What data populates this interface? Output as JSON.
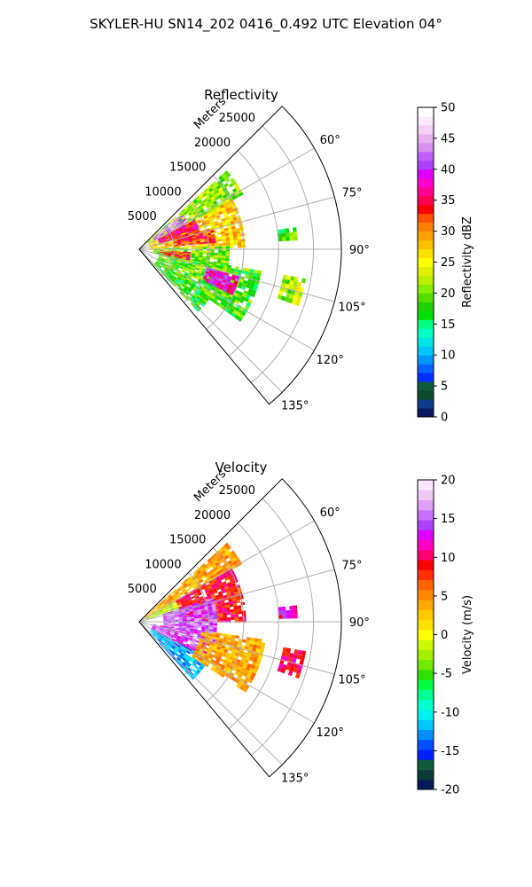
{
  "figure": {
    "suptitle": "SKYLER-HU  SN14_202  0416_0.492 UTC Elevation 04°"
  },
  "chart_data": [
    {
      "type": "heatmap",
      "title": "Reflectivity",
      "radial_axis_label": "Meters",
      "radial_ticks": [
        "5000",
        "10000",
        "15000",
        "20000",
        "25000"
      ],
      "radial_tick_values": [
        5000,
        10000,
        15000,
        20000,
        25000
      ],
      "r_max": 29000,
      "angular_range_deg": [
        45,
        140
      ],
      "angular_ticks": [
        "60°",
        "75°",
        "90°",
        "105°",
        "120°",
        "135°"
      ],
      "angular_tick_values": [
        60,
        75,
        90,
        105,
        120,
        135
      ],
      "grid": true,
      "colorbar": {
        "label": "Reflectivity dBZ",
        "range": [
          0,
          50
        ],
        "ticks": [
          "0",
          "5",
          "10",
          "15",
          "20",
          "25",
          "30",
          "35",
          "40",
          "45",
          "50"
        ],
        "colors": [
          "#081a5c",
          "#0d3a8a",
          "#0b4a2a",
          "#0e5c3c",
          "#0030ff",
          "#0064ff",
          "#0096ff",
          "#00c8ff",
          "#00e6e6",
          "#00ffc0",
          "#00ff80",
          "#00e000",
          "#22d000",
          "#55dd00",
          "#88ee00",
          "#bbf000",
          "#e0f000",
          "#ffff00",
          "#ffe000",
          "#ffc000",
          "#ffa000",
          "#ff8000",
          "#ff5000",
          "#ff0000",
          "#ff0050",
          "#ff0090",
          "#ff00d0",
          "#e000ff",
          "#b040ff",
          "#c060ff",
          "#d890f0",
          "#e8b0f0",
          "#f4d0f8",
          "#fbeafc",
          "#ffffff"
        ]
      },
      "echo_regions": [
        {
          "az_start": 48,
          "az_end": 62,
          "r_start": 1500,
          "r_end": 16500,
          "dbz": 21
        },
        {
          "az_start": 62,
          "az_end": 88,
          "r_start": 1500,
          "r_end": 15000,
          "dbz": 27
        },
        {
          "az_start": 88,
          "az_end": 104,
          "r_start": 2000,
          "r_end": 13000,
          "dbz": 20
        },
        {
          "az_start": 100,
          "az_end": 124,
          "r_start": 3000,
          "r_end": 17500,
          "dbz": 19
        },
        {
          "az_start": 124,
          "az_end": 136,
          "r_start": 3000,
          "r_end": 12000,
          "dbz": 17
        },
        {
          "az_start": 50,
          "az_end": 62,
          "r_start": 2500,
          "r_end": 7500,
          "dbz": 43
        },
        {
          "az_start": 62,
          "az_end": 74,
          "r_start": 3000,
          "r_end": 9000,
          "dbz": 36
        },
        {
          "az_start": 74,
          "az_end": 84,
          "r_start": 5000,
          "r_end": 11000,
          "dbz": 33
        },
        {
          "az_start": 105,
          "az_end": 116,
          "r_start": 10000,
          "r_end": 14500,
          "dbz": 38
        },
        {
          "az_start": 93,
          "az_end": 102,
          "r_start": 3000,
          "r_end": 7000,
          "dbz": 33
        },
        {
          "az_start": 100,
          "az_end": 108,
          "r_start": 21000,
          "r_end": 24000,
          "dbz": 22
        },
        {
          "az_start": 82,
          "az_end": 86,
          "r_start": 20000,
          "r_end": 22500,
          "dbz": 19
        }
      ]
    },
    {
      "type": "heatmap",
      "title": "Velocity",
      "radial_axis_label": "Meters",
      "radial_ticks": [
        "5000",
        "10000",
        "15000",
        "20000",
        "25000"
      ],
      "radial_tick_values": [
        5000,
        10000,
        15000,
        20000,
        25000
      ],
      "r_max": 29000,
      "angular_range_deg": [
        45,
        140
      ],
      "angular_ticks": [
        "60°",
        "75°",
        "90°",
        "105°",
        "120°",
        "135°"
      ],
      "angular_tick_values": [
        60,
        75,
        90,
        105,
        120,
        135
      ],
      "grid": true,
      "colorbar": {
        "label": "Velocity (m/s)",
        "range": [
          -20,
          20
        ],
        "ticks": [
          "-20",
          "-15",
          "-10",
          "-5",
          "0",
          "5",
          "10",
          "15",
          "20"
        ],
        "colors": [
          "#081a5c",
          "#0b3a3a",
          "#0e5c3c",
          "#0020ff",
          "#0050ff",
          "#0090ff",
          "#00c8ff",
          "#00f0f0",
          "#00ffd0",
          "#00ff90",
          "#00ff40",
          "#30e000",
          "#70e800",
          "#a0f000",
          "#ccf800",
          "#ffff00",
          "#ffe000",
          "#ffc800",
          "#ffa800",
          "#ff8800",
          "#ff6600",
          "#ff3000",
          "#ff0000",
          "#ff0070",
          "#ff00c0",
          "#e000ff",
          "#b040ff",
          "#c870ff",
          "#e0a0f8",
          "#f0c8f8",
          "#fbe8fc"
        ]
      },
      "echo_regions": [
        {
          "az_start": 48,
          "az_end": 60,
          "r_start": 1000,
          "r_end": 16500,
          "velocity": 4
        },
        {
          "az_start": 60,
          "az_end": 70,
          "r_start": 1000,
          "r_end": 8000,
          "velocity": -2
        },
        {
          "az_start": 60,
          "az_end": 90,
          "r_start": 6000,
          "r_end": 15000,
          "velocity": 9
        },
        {
          "az_start": 72,
          "az_end": 100,
          "r_start": 3500,
          "r_end": 11000,
          "velocity": 15
        },
        {
          "az_start": 100,
          "az_end": 122,
          "r_start": 2000,
          "r_end": 11000,
          "velocity": 14
        },
        {
          "az_start": 118,
          "az_end": 136,
          "r_start": 2000,
          "r_end": 11000,
          "velocity": -12
        },
        {
          "az_start": 98,
          "az_end": 122,
          "r_start": 9000,
          "r_end": 18000,
          "velocity": 4
        },
        {
          "az_start": 100,
          "az_end": 108,
          "r_start": 21000,
          "r_end": 24000,
          "velocity": 10
        },
        {
          "az_start": 84,
          "az_end": 88,
          "r_start": 20000,
          "r_end": 22500,
          "velocity": 12
        }
      ]
    }
  ]
}
